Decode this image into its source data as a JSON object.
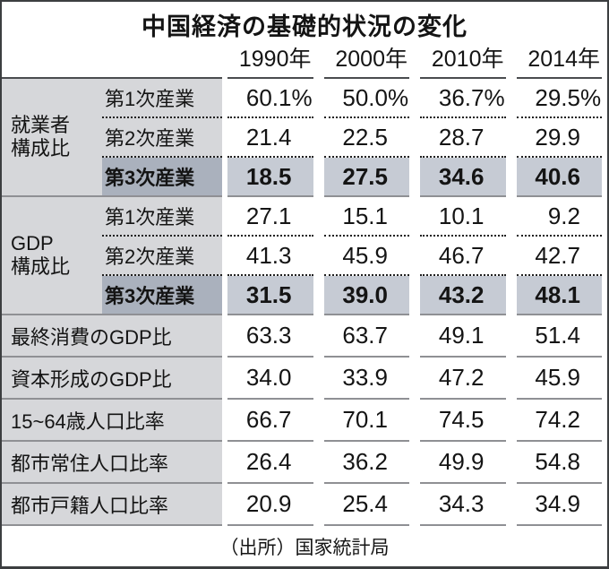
{
  "title": "中国経済の基礎的状況の変化",
  "columns": [
    "1990年",
    "2000年",
    "2010年",
    "2014年"
  ],
  "groups": [
    {
      "label": "就業者\n構成比",
      "rows": [
        {
          "label": "第1次産業",
          "suffix": "%",
          "values": [
            "60.1",
            "50.0",
            "36.7",
            "29.5"
          ]
        },
        {
          "label": "第2次産業",
          "values": [
            "21.4",
            "22.5",
            "28.7",
            "29.9"
          ]
        },
        {
          "label": "第3次産業",
          "values": [
            "18.5",
            "27.5",
            "34.6",
            "40.6"
          ]
        }
      ]
    },
    {
      "label": "GDP\n構成比",
      "rows": [
        {
          "label": "第1次産業",
          "values": [
            "27.1",
            "15.1",
            "10.1",
            "9.2"
          ]
        },
        {
          "label": "第2次産業",
          "values": [
            "41.3",
            "45.9",
            "46.7",
            "42.7"
          ]
        },
        {
          "label": "第3次産業",
          "values": [
            "31.5",
            "39.0",
            "43.2",
            "48.1"
          ]
        }
      ]
    }
  ],
  "rows": [
    {
      "label": "最終消費のGDP比",
      "values": [
        "63.3",
        "63.7",
        "49.1",
        "51.4"
      ]
    },
    {
      "label": "資本形成のGDP比",
      "values": [
        "34.0",
        "33.9",
        "47.2",
        "45.9"
      ]
    },
    {
      "label": "15~64歳人口比率",
      "values": [
        "66.7",
        "70.1",
        "74.5",
        "74.2"
      ]
    },
    {
      "label": "都市常住人口比率",
      "values": [
        "26.4",
        "36.2",
        "49.9",
        "54.8"
      ]
    },
    {
      "label": "都市戸籍人口比率",
      "values": [
        "20.9",
        "25.4",
        "34.3",
        "34.9"
      ]
    }
  ],
  "source": "（出所）国家統計局",
  "colors": {
    "label_background": "#d6d7da",
    "highlight_label_background": "#aab1bd",
    "highlight_cell_background": "#c6cbd4",
    "separator_gray": "#8f9094",
    "header_rule": "#4a4c4f"
  },
  "chart_data": {
    "type": "table",
    "title": "中国経済の基礎的状況の変化",
    "columns": [
      "1990年",
      "2000年",
      "2010年",
      "2014年"
    ],
    "unit": "%",
    "rows": [
      {
        "group": "就業者構成比",
        "label": "第1次産業",
        "values": [
          60.1,
          50.0,
          36.7,
          29.5
        ],
        "highlight": false
      },
      {
        "group": "就業者構成比",
        "label": "第2次産業",
        "values": [
          21.4,
          22.5,
          28.7,
          29.9
        ],
        "highlight": false
      },
      {
        "group": "就業者構成比",
        "label": "第3次産業",
        "values": [
          18.5,
          27.5,
          34.6,
          40.6
        ],
        "highlight": true
      },
      {
        "group": "GDP構成比",
        "label": "第1次産業",
        "values": [
          27.1,
          15.1,
          10.1,
          9.2
        ],
        "highlight": false
      },
      {
        "group": "GDP構成比",
        "label": "第2次産業",
        "values": [
          41.3,
          45.9,
          46.7,
          42.7
        ],
        "highlight": false
      },
      {
        "group": "GDP構成比",
        "label": "第3次産業",
        "values": [
          31.5,
          39.0,
          43.2,
          48.1
        ],
        "highlight": true
      },
      {
        "group": null,
        "label": "最終消費のGDP比",
        "values": [
          63.3,
          63.7,
          49.1,
          51.4
        ],
        "highlight": false
      },
      {
        "group": null,
        "label": "資本形成のGDP比",
        "values": [
          34.0,
          33.9,
          47.2,
          45.9
        ],
        "highlight": false
      },
      {
        "group": null,
        "label": "15~64歳人口比率",
        "values": [
          66.7,
          70.1,
          74.5,
          74.2
        ],
        "highlight": false
      },
      {
        "group": null,
        "label": "都市常住人口比率",
        "values": [
          26.4,
          36.2,
          49.9,
          54.8
        ],
        "highlight": false
      },
      {
        "group": null,
        "label": "都市戸籍人口比率",
        "values": [
          20.9,
          25.4,
          34.3,
          34.9
        ],
        "highlight": false
      }
    ],
    "source": "（出所）国家統計局"
  }
}
